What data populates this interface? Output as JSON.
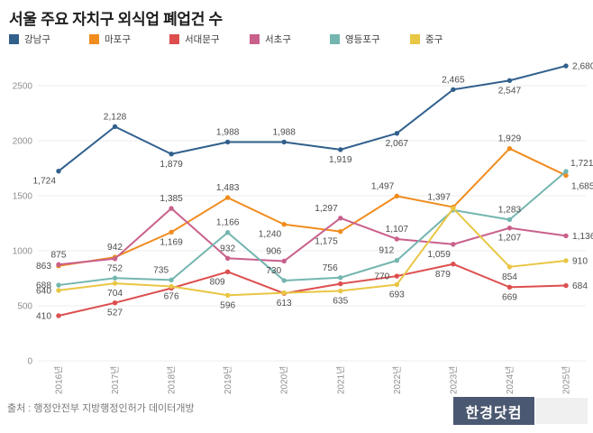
{
  "title": "서울 주요 자치구 외식업 폐업건 수",
  "source_text": "출처 : 행정안전부 지방행정인허가 데이터개방",
  "logo_text": "한경닷컴",
  "colors": {
    "background": "#ffffff",
    "gridline": "#ececec",
    "axis_text": "#8f8f8f",
    "data_label_text": "#4c4c4c",
    "title_text": "#1c1c1c",
    "logo_bg": "#4b5871",
    "logo_fg": "#ffffff",
    "logo_tail_bg": "#f0f0f0"
  },
  "chart_data": {
    "type": "line",
    "title": "서울 주요 자치구 외식업 폐업건 수",
    "x": [
      "2016년",
      "2017년",
      "2018년",
      "2019년",
      "2020년",
      "2021년",
      "2022년",
      "2023년",
      "2024년",
      "2025년"
    ],
    "xlabel": "",
    "ylabel": "",
    "ylim": [
      0,
      2500
    ],
    "yticks": [
      0,
      500,
      1000,
      1500,
      2000,
      2500
    ],
    "ytick_labels": [
      "0",
      "500",
      "1000",
      "1500",
      "2000",
      "2500"
    ],
    "grid": true,
    "legend_position": "top-left",
    "x_tick_rotation": -90,
    "series": [
      {
        "key": "gangnam",
        "name": "강남구",
        "color": "#31608d",
        "values": [
          1724,
          2128,
          1879,
          1988,
          1988,
          1919,
          2067,
          2465,
          2547,
          2680
        ],
        "labels": [
          "1,724",
          "2,128",
          "1,879",
          "1,988",
          "1,988",
          "1,919",
          "2,067",
          "2,465",
          "2,547",
          "2,680"
        ]
      },
      {
        "key": "mapo",
        "name": "마포구",
        "color": "#f18c1f",
        "values": [
          863,
          942,
          1169,
          1483,
          1240,
          1175,
          1497,
          1397,
          1929,
          1685
        ],
        "labels": [
          "863",
          "942",
          "1,169",
          "1,483",
          "1,240",
          "1,175",
          "1,497",
          "1,397",
          "1,929",
          "1,685"
        ]
      },
      {
        "key": "seodaemun",
        "name": "서대문구",
        "color": "#dd4e4e",
        "values": [
          410,
          527,
          660,
          809,
          613,
          700,
          770,
          879,
          669,
          684
        ],
        "labels": [
          "410",
          "527",
          null,
          "809",
          "613",
          null,
          "770",
          "879",
          "669",
          "684"
        ]
      },
      {
        "key": "seocho",
        "name": "서초구",
        "color": "#c9608c",
        "values": [
          875,
          928,
          1385,
          932,
          906,
          1297,
          1107,
          1059,
          1207,
          1136
        ],
        "labels": [
          "875",
          null,
          "1,385",
          "932",
          "906",
          "1,297",
          "1,107",
          "1,059",
          "1,207",
          "1,136"
        ]
      },
      {
        "key": "yeongdeungpo",
        "name": "영등포구",
        "color": "#74b6af",
        "values": [
          688,
          752,
          735,
          1166,
          730,
          756,
          912,
          1370,
          1283,
          1721
        ],
        "labels": [
          "688",
          "752",
          "735",
          "1,166",
          "730",
          "756",
          "912",
          null,
          "1,283",
          "1,721"
        ]
      },
      {
        "key": "junggu",
        "name": "중구",
        "color": "#e9c644",
        "values": [
          640,
          704,
          676,
          596,
          618,
          635,
          693,
          1385,
          854,
          910
        ],
        "labels": [
          "640",
          "704",
          "676",
          "596",
          null,
          "635",
          "693",
          null,
          "854",
          "910"
        ]
      }
    ]
  }
}
